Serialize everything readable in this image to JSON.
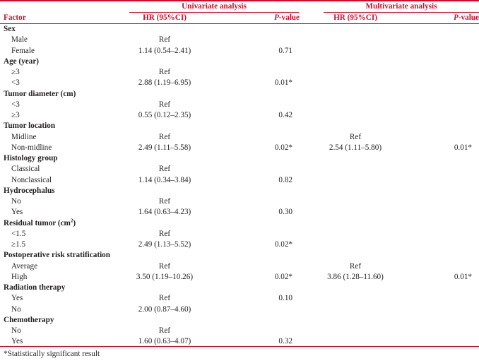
{
  "colors": {
    "accent": "#c8102e",
    "text": "#231f20"
  },
  "groups": {
    "univariate": "Univariate analysis",
    "multivariate": "Multivariate analysis"
  },
  "headers": {
    "factor": "Factor",
    "hr_uni": "HR (95%CI)",
    "p_uni_italic": "P",
    "p_uni_rest": "-value",
    "hr_multi": "HR (95%CI)",
    "p_multi_italic": "P",
    "p_multi_rest": "-value"
  },
  "rows": [
    {
      "factor": "Sex",
      "type": "category"
    },
    {
      "factor": "Male",
      "type": "level",
      "hr_uni": "Ref",
      "p_uni": "",
      "hr_multi": "",
      "p_multi": ""
    },
    {
      "factor": "Female",
      "type": "level",
      "hr_uni": "1.14 (0.54–2.41)",
      "p_uni": "0.71",
      "hr_multi": "",
      "p_multi": ""
    },
    {
      "factor": "Age (year)",
      "type": "category"
    },
    {
      "factor": "≥3",
      "type": "level",
      "hr_uni": "Ref",
      "p_uni": "",
      "hr_multi": "",
      "p_multi": ""
    },
    {
      "factor": "<3",
      "type": "level",
      "hr_uni": "2.88 (1.19–6.95)",
      "p_uni": "0.01*",
      "hr_multi": "",
      "p_multi": ""
    },
    {
      "factor": "Tumor diameter (cm)",
      "type": "category"
    },
    {
      "factor": "<3",
      "type": "level",
      "hr_uni": "Ref",
      "p_uni": "",
      "hr_multi": "",
      "p_multi": ""
    },
    {
      "factor": "≥3",
      "type": "level",
      "hr_uni": "0.55 (0.12–2.35)",
      "p_uni": "0.42",
      "hr_multi": "",
      "p_multi": ""
    },
    {
      "factor": "Tumor location",
      "type": "category"
    },
    {
      "factor": "Midline",
      "type": "level",
      "hr_uni": "Ref",
      "p_uni": "",
      "hr_multi": "Ref",
      "p_multi": ""
    },
    {
      "factor": "Non-midline",
      "type": "level",
      "hr_uni": "2.49 (1.11–5.58)",
      "p_uni": "0.02*",
      "hr_multi": "2.54 (1.11–5.80)",
      "p_multi": "0.01*"
    },
    {
      "factor": "Histology group",
      "type": "category"
    },
    {
      "factor": "Classical",
      "type": "level",
      "hr_uni": "Ref",
      "p_uni": "",
      "hr_multi": "",
      "p_multi": ""
    },
    {
      "factor": "Nonclassical",
      "type": "level",
      "hr_uni": "1.14 (0.34–3.84)",
      "p_uni": "0.82",
      "hr_multi": "",
      "p_multi": ""
    },
    {
      "factor": "Hydrocephalus",
      "type": "category"
    },
    {
      "factor": "No",
      "type": "level",
      "hr_uni": "Ref",
      "p_uni": "",
      "hr_multi": "",
      "p_multi": ""
    },
    {
      "factor": "Yes",
      "type": "level",
      "hr_uni": "1.64 (0.63–4.23)",
      "p_uni": "0.30",
      "hr_multi": "",
      "p_multi": ""
    },
    {
      "factor": "Residual tumor (cm",
      "factor_sup": "2",
      "factor_tail": ")",
      "type": "category"
    },
    {
      "factor": "<1.5",
      "type": "level",
      "hr_uni": "Ref",
      "p_uni": "",
      "hr_multi": "",
      "p_multi": ""
    },
    {
      "factor": "≥1.5",
      "type": "level",
      "hr_uni": "2.49 (1.13–5.52)",
      "p_uni": "0.02*",
      "hr_multi": "",
      "p_multi": ""
    },
    {
      "factor": "Postoperative risk stratification",
      "type": "category"
    },
    {
      "factor": "Average",
      "type": "level",
      "hr_uni": "Ref",
      "p_uni": "",
      "hr_multi": "Ref",
      "p_multi": ""
    },
    {
      "factor": "High",
      "type": "level",
      "hr_uni": "3.50 (1.19–10.26)",
      "p_uni": "0.02*",
      "hr_multi": "3.86 (1.28–11.60)",
      "p_multi": "0.01*"
    },
    {
      "factor": "Radiation therapy",
      "type": "category"
    },
    {
      "factor": "Yes",
      "type": "level",
      "hr_uni": "Ref",
      "p_uni": "0.10",
      "hr_multi": "",
      "p_multi": ""
    },
    {
      "factor": "No",
      "type": "level",
      "hr_uni": "2.00 (0.87–4.60)",
      "p_uni": "",
      "hr_multi": "",
      "p_multi": ""
    },
    {
      "factor": "Chemotherapy",
      "type": "category"
    },
    {
      "factor": "No",
      "type": "level",
      "hr_uni": "Ref",
      "p_uni": "",
      "hr_multi": "",
      "p_multi": ""
    },
    {
      "factor": "Yes",
      "type": "level",
      "hr_uni": "1.60 (0.63–4.07)",
      "p_uni": "0.32",
      "hr_multi": "",
      "p_multi": ""
    }
  ],
  "footnote": "*Statistically significant result"
}
